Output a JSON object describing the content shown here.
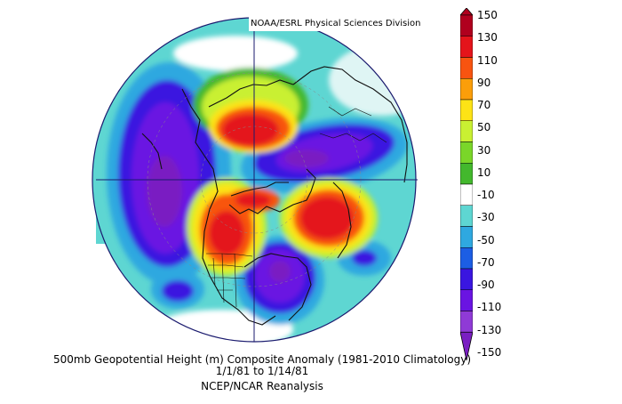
{
  "credit": "NOAA/ESRL Physical Sciences Division",
  "caption": {
    "line1": "500mb Geopotential Height (m) Composite Anomaly (1981-2010 Climatology)",
    "line2": "1/1/81  to 1/14/81",
    "line3": "NCEP/NCAR Reanalysis"
  },
  "colorbar": {
    "labels": [
      "150",
      "130",
      "110",
      "90",
      "70",
      "50",
      "30",
      "10",
      "-10",
      "-30",
      "-50",
      "-70",
      "-90",
      "-110",
      "-130",
      "-150"
    ],
    "colors": [
      "#b0001e",
      "#e4141b",
      "#f85410",
      "#fb9e0a",
      "#fde316",
      "#c9f032",
      "#7ad629",
      "#43b82d",
      "#ffffff",
      "#5ed6d2",
      "#2fa8e0",
      "#1c5ee4",
      "#3a16e0",
      "#6a14e2",
      "#8f3ad6",
      "#7a1fc2"
    ]
  }
}
